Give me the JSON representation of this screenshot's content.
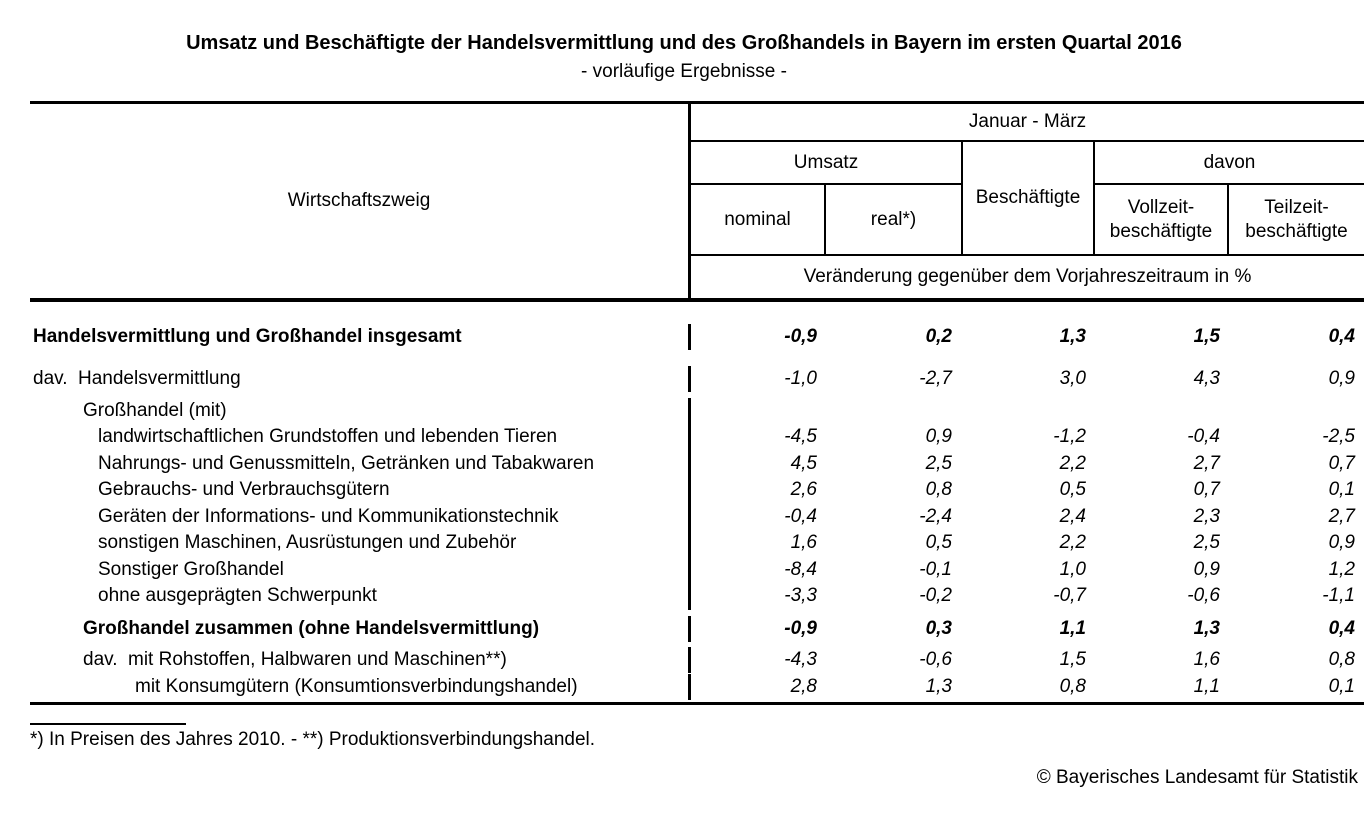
{
  "title": "Umsatz und Beschäftigte der Handelsvermittlung und des Großhandels in Bayern im ersten Quartal 2016",
  "subtitle": "- vorläufige Ergebnisse -",
  "colors": {
    "text": "#000000",
    "background": "#ffffff",
    "border": "#000000"
  },
  "table": {
    "header": {
      "wirtschaftszweig": "Wirtschaftszweig",
      "period": "Januar - März",
      "umsatz": "Umsatz",
      "beschaeftigte": "Beschäftigte",
      "davon": "davon",
      "nominal": "nominal",
      "real": "real*)",
      "vollzeit": "Vollzeit-\nbeschäftigte",
      "teilzeit": "Teilzeit-\nbeschäftigte",
      "unit": "Veränderung gegenüber dem Vorjahreszeitraum in %"
    },
    "rows": [
      {
        "level": 0,
        "bold": true,
        "prefix": "",
        "label": "Handelsvermittlung und Großhandel insgesamt",
        "values": [
          "-0,9",
          "0,2",
          "1,3",
          "1,5",
          "0,4"
        ]
      },
      {
        "level": 0,
        "bold": false,
        "prefix": "dav.",
        "label": "Handelsvermittlung",
        "values": [
          "-1,0",
          "-2,7",
          "3,0",
          "4,3",
          "0,9"
        ]
      },
      {
        "level": 1,
        "bold": false,
        "prefix": "",
        "label": "Großhandel (mit)",
        "values": []
      },
      {
        "level": 2,
        "bold": false,
        "prefix": "",
        "label": "landwirtschaftlichen Grundstoffen und lebenden Tieren",
        "values": [
          "-4,5",
          "0,9",
          "-1,2",
          "-0,4",
          "-2,5"
        ]
      },
      {
        "level": 2,
        "bold": false,
        "prefix": "",
        "label": "Nahrungs- und Genussmitteln, Getränken und Tabakwaren",
        "values": [
          "4,5",
          "2,5",
          "2,2",
          "2,7",
          "0,7"
        ]
      },
      {
        "level": 2,
        "bold": false,
        "prefix": "",
        "label": "Gebrauchs- und Verbrauchsgütern",
        "values": [
          "2,6",
          "0,8",
          "0,5",
          "0,7",
          "0,1"
        ]
      },
      {
        "level": 2,
        "bold": false,
        "prefix": "",
        "label": "Geräten der Informations- und Kommunikationstechnik",
        "values": [
          "-0,4",
          "-2,4",
          "2,4",
          "2,3",
          "2,7"
        ]
      },
      {
        "level": 2,
        "bold": false,
        "prefix": "",
        "label": "sonstigen Maschinen, Ausrüstungen und Zubehör",
        "values": [
          "1,6",
          "0,5",
          "2,2",
          "2,5",
          "0,9"
        ]
      },
      {
        "level": 2,
        "bold": false,
        "prefix": "",
        "label": "Sonstiger Großhandel",
        "values": [
          "-8,4",
          "-0,1",
          "1,0",
          "0,9",
          "1,2"
        ]
      },
      {
        "level": 2,
        "bold": false,
        "prefix": "",
        "label": "ohne ausgeprägten Schwerpunkt",
        "values": [
          "-3,3",
          "-0,2",
          "-0,7",
          "-0,6",
          "-1,1"
        ]
      },
      {
        "level": 1,
        "bold": true,
        "prefix": "",
        "label": "Großhandel zusammen (ohne Handelsvermittlung)",
        "values": [
          "-0,9",
          "0,3",
          "1,1",
          "1,3",
          "0,4"
        ]
      },
      {
        "level": 1,
        "bold": false,
        "prefix": "dav.",
        "label": "mit Rohstoffen, Halbwaren und Maschinen**)",
        "values": [
          "-4,3",
          "-0,6",
          "1,5",
          "1,6",
          "0,8"
        ]
      },
      {
        "level": 3,
        "bold": false,
        "prefix": "",
        "label": "mit Konsumgütern (Konsumtionsverbindungshandel)",
        "values": [
          "2,8",
          "1,3",
          "0,8",
          "1,1",
          "0,1"
        ]
      }
    ]
  },
  "footnote": "*) In Preisen des Jahres 2010. - **) Produktionsverbindungshandel.",
  "copyright": "© Bayerisches Landesamt für Statistik"
}
